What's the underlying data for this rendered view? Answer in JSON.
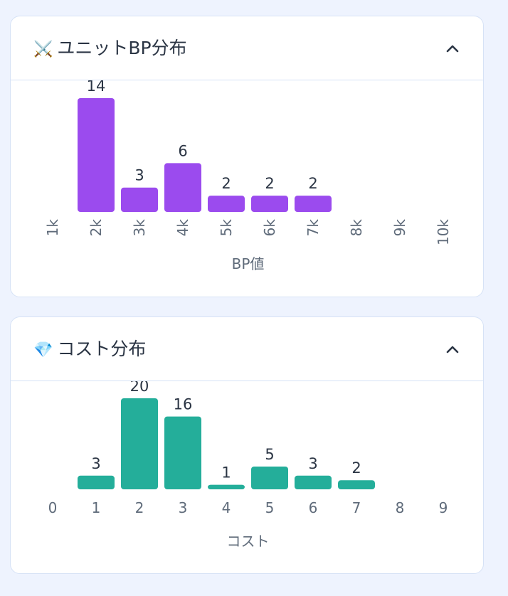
{
  "colors": {
    "bp_bar": "#9b4bee",
    "cost_bar": "#24ae9a",
    "label_text": "#2b3544",
    "tick_text": "#5f6b7a",
    "card_border": "#d6e2f6",
    "page_bg": "#eef3fe"
  },
  "bp_card": {
    "title": "ユニットBP分布",
    "icon": "crossed-swords-icon",
    "icon_glyph": "⚔️",
    "collapse_icon": "chevron-up-icon"
  },
  "cost_card": {
    "title": "コスト分布",
    "icon": "gem-icon",
    "icon_glyph": "💎",
    "collapse_icon": "chevron-up-icon"
  },
  "chart_data": [
    {
      "type": "bar",
      "title": "ユニットBP分布",
      "categories": [
        "1k",
        "2k",
        "3k",
        "4k",
        "5k",
        "6k",
        "7k",
        "8k",
        "9k",
        "10k"
      ],
      "values": [
        0,
        14,
        3,
        6,
        2,
        2,
        2,
        0,
        0,
        0
      ],
      "data_labels": [
        "",
        "14",
        "3",
        "6",
        "2",
        "2",
        "2",
        "",
        "",
        ""
      ],
      "xlabel": "BP値",
      "ylabel": "",
      "ylim": [
        0,
        14
      ],
      "grid": false,
      "tick_rotation": "vertical"
    },
    {
      "type": "bar",
      "title": "コスト分布",
      "categories": [
        "0",
        "1",
        "2",
        "3",
        "4",
        "5",
        "6",
        "7",
        "8",
        "9"
      ],
      "values": [
        0,
        3,
        20,
        16,
        1,
        5,
        3,
        2,
        0,
        0
      ],
      "data_labels": [
        "",
        "3",
        "20",
        "16",
        "1",
        "5",
        "3",
        "2",
        "",
        ""
      ],
      "xlabel": "コスト",
      "ylabel": "",
      "ylim": [
        0,
        20
      ],
      "grid": false,
      "tick_rotation": "horizontal"
    }
  ]
}
